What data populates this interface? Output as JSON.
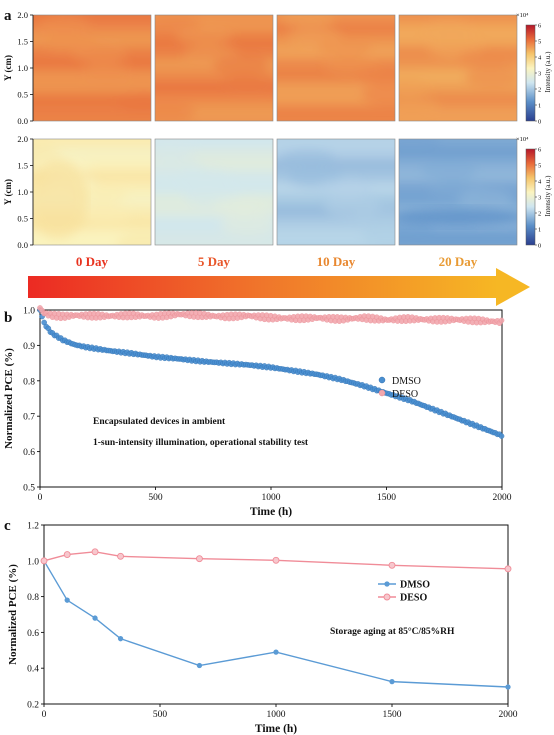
{
  "chart_data": [
    {
      "type": "heatmap",
      "panel_label": "a",
      "ylabel": "Y (cm)",
      "y_ticks": [
        "0.0",
        "0.5",
        "1.0",
        "1.5",
        "2.0"
      ],
      "colorbar": {
        "label": "Intensity (a.u.)",
        "exponent": "×10⁴",
        "ticks": [
          "0",
          "1",
          "2",
          "3",
          "4",
          "5",
          "6"
        ],
        "range": [
          0,
          6
        ]
      },
      "days": [
        "0 Day",
        "5 Day",
        "10 Day",
        "20 Day"
      ],
      "rows": [
        {
          "name": "",
          "levels": [
            4.8,
            4.8,
            4.7,
            4.6
          ]
        },
        {
          "name": "",
          "levels": [
            3.4,
            2.6,
            2.0,
            1.6
          ]
        }
      ],
      "day_colors": [
        "#e8331f",
        "#e8562a",
        "#e8872f",
        "#e89a33"
      ]
    },
    {
      "type": "scatter",
      "panel_label": "b",
      "xlabel": "Time (h)",
      "ylabel": "Normalized PCE (%)",
      "xlim": [
        0,
        2000
      ],
      "ylim": [
        0.5,
        1.0
      ],
      "x_ticks": [
        0,
        500,
        1000,
        1500,
        2000
      ],
      "y_ticks": [
        "0.5",
        "0.6",
        "0.7",
        "0.8",
        "0.9",
        "1.0"
      ],
      "legend_position": "center-right",
      "annotations": [
        "Encapsulated devices in ambient",
        "1-sun-intensity illumination, operational stability test"
      ],
      "series": [
        {
          "name": "DMSO",
          "color": "#4a8fd0",
          "x": [
            0,
            20,
            50,
            100,
            150,
            200,
            300,
            400,
            500,
            600,
            700,
            800,
            900,
            1000,
            1100,
            1200,
            1300,
            1400,
            1500,
            1600,
            1700,
            1800,
            1900,
            2000
          ],
          "y": [
            1.0,
            0.96,
            0.935,
            0.915,
            0.902,
            0.895,
            0.885,
            0.877,
            0.868,
            0.862,
            0.855,
            0.85,
            0.845,
            0.838,
            0.828,
            0.818,
            0.804,
            0.786,
            0.765,
            0.745,
            0.72,
            0.695,
            0.67,
            0.645
          ]
        },
        {
          "name": "DESO",
          "color": "#f2a7ad",
          "x": [
            0,
            20,
            50,
            100,
            150,
            200,
            300,
            400,
            500,
            600,
            700,
            800,
            900,
            1000,
            1100,
            1200,
            1300,
            1400,
            1500,
            1600,
            1700,
            1800,
            1900,
            2000
          ],
          "y": [
            1.005,
            0.99,
            0.985,
            0.982,
            0.985,
            0.984,
            0.983,
            0.985,
            0.982,
            0.988,
            0.985,
            0.981,
            0.984,
            0.978,
            0.976,
            0.978,
            0.974,
            0.978,
            0.972,
            0.975,
            0.972,
            0.973,
            0.97,
            0.966
          ]
        }
      ]
    },
    {
      "type": "line",
      "panel_label": "c",
      "xlabel": "Time (h)",
      "ylabel": "Normalized PCE (%)",
      "xlim": [
        0,
        2000
      ],
      "ylim": [
        0.2,
        1.2
      ],
      "x_ticks": [
        0,
        500,
        1000,
        1500,
        2000
      ],
      "y_ticks": [
        "0.2",
        "0.4",
        "0.6",
        "0.8",
        "1.0",
        "1.2"
      ],
      "legend_position": "center-right",
      "annotations": [
        "Storage aging at 85°C/85%RH"
      ],
      "series": [
        {
          "name": "DMSO",
          "color": "#5b9bd5",
          "x": [
            0,
            100,
            220,
            330,
            670,
            1000,
            1500,
            2000
          ],
          "y": [
            1.0,
            0.78,
            0.68,
            0.565,
            0.415,
            0.49,
            0.325,
            0.295
          ]
        },
        {
          "name": "DESO",
          "color": "#f08c98",
          "x": [
            0,
            100,
            220,
            330,
            670,
            1000,
            1500,
            2000
          ],
          "y": [
            1.0,
            1.035,
            1.05,
            1.025,
            1.012,
            1.003,
            0.975,
            0.955
          ]
        }
      ]
    }
  ]
}
